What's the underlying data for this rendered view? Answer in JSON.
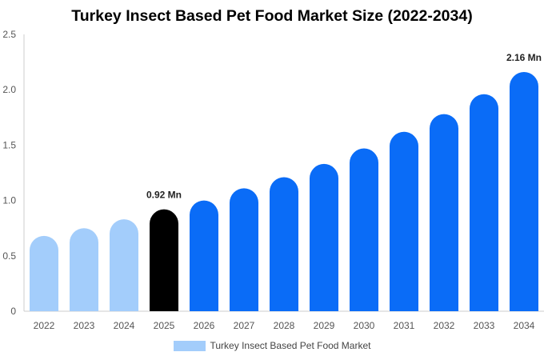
{
  "chart_data": {
    "type": "bar",
    "title": "Turkey Insect Based Pet Food Market Size (2022-2034)",
    "xlabel": "",
    "ylabel": "",
    "categories": [
      "2022",
      "2023",
      "2024",
      "2025",
      "2026",
      "2027",
      "2028",
      "2029",
      "2030",
      "2031",
      "2032",
      "2033",
      "2034"
    ],
    "series": [
      {
        "name": "Turkey Insect Based Pet Food Market",
        "values": [
          0.68,
          0.75,
          0.83,
          0.92,
          1.0,
          1.11,
          1.21,
          1.33,
          1.47,
          1.62,
          1.78,
          1.96,
          2.16
        ]
      }
    ],
    "ylim": [
      0,
      2.5
    ],
    "yticks": [
      "0",
      "0.5",
      "1.0",
      "1.5",
      "2.0",
      "2.5"
    ],
    "grid": false,
    "legend_position": "bottom",
    "data_labels": [
      {
        "category": "2025",
        "text": "0.92 Mn"
      },
      {
        "category": "2034",
        "text": "2.16 Mn"
      }
    ],
    "colors": {
      "historical": "#a3cdfb",
      "current": "#000000",
      "forecast": "#0a6cf7",
      "legend_swatch": "#a3cdfb",
      "axis": "#cccccc"
    },
    "bar_color_groups": [
      "historical",
      "historical",
      "historical",
      "current",
      "forecast",
      "forecast",
      "forecast",
      "forecast",
      "forecast",
      "forecast",
      "forecast",
      "forecast",
      "forecast"
    ]
  }
}
